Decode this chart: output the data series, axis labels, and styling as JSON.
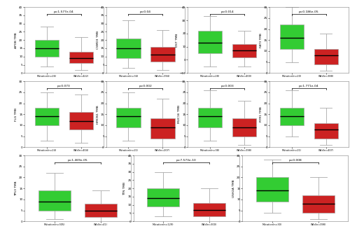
{
  "plots": [
    {
      "gene": "APOB",
      "ylabel": "APOB TMB",
      "pvalue": "p=1.577e-04",
      "mutation_label": "Mutation(n=26)",
      "wildtype_label": "Wild(n=422)",
      "mut": {
        "median": 15,
        "q1": 10,
        "q3": 20,
        "whislo": 4,
        "whishi": 28
      },
      "wt": {
        "median": 9,
        "q1": 6,
        "q3": 13,
        "whislo": 2,
        "whishi": 22
      },
      "ylim": [
        0,
        40
      ]
    },
    {
      "gene": "CSMD3",
      "ylabel": "CSMD3 TMB",
      "pvalue": "p=0.04",
      "mutation_label": "Mutation(n=34)",
      "wildtype_label": "Wild(n=394)",
      "mut": {
        "median": 15,
        "q1": 9,
        "q3": 21,
        "whislo": 3,
        "whishi": 32
      },
      "wt": {
        "median": 11,
        "q1": 7,
        "q3": 16,
        "whislo": 2,
        "whishi": 26
      },
      "ylim": [
        0,
        40
      ]
    },
    {
      "gene": "DST",
      "ylabel": "DST TMB",
      "pvalue": "p=0.014",
      "mutation_label": "Mutation(n=28)",
      "wildtype_label": "Wild(n=400)",
      "mut": {
        "median": 13,
        "q1": 5,
        "q3": 22,
        "whislo": -5,
        "whishi": 33
      },
      "wt": {
        "median": 7,
        "q1": 2,
        "q3": 12,
        "whislo": -5,
        "whishi": 22
      },
      "ylim": [
        -10,
        40
      ]
    },
    {
      "gene": "FAT3",
      "ylabel": "FAT3 TMB",
      "pvalue": "p=0.186e-05",
      "mutation_label": "Mutation(n=20)",
      "wildtype_label": "Wild(n=388)",
      "mut": {
        "median": 16,
        "q1": 11,
        "q3": 22,
        "whislo": 5,
        "whishi": 30
      },
      "wt": {
        "median": 8,
        "q1": 4,
        "q3": 11,
        "whislo": 1,
        "whishi": 18
      },
      "ylim": [
        0,
        30
      ]
    },
    {
      "gene": "FLG",
      "ylabel": "FLG TMB",
      "pvalue": "p=0.073",
      "mutation_label": "Mutation(n=24)",
      "wildtype_label": "Wild(n=404)",
      "mut": {
        "median": 14,
        "q1": 10,
        "q3": 18,
        "whislo": 3,
        "whishi": 25
      },
      "wt": {
        "median": 12,
        "q1": 8,
        "q3": 16,
        "whislo": 2,
        "whishi": 24
      },
      "ylim": [
        0,
        30
      ]
    },
    {
      "gene": "HMCN1",
      "ylabel": "HMCN1 TMB",
      "pvalue": "p=0.002",
      "mutation_label": "Mutation(n=21)",
      "wildtype_label": "Wild(n=207)",
      "mut": {
        "median": 14,
        "q1": 9,
        "q3": 18,
        "whislo": 3,
        "whishi": 25
      },
      "wt": {
        "median": 9,
        "q1": 4,
        "q3": 13,
        "whislo": 0,
        "whishi": 22
      },
      "ylim": [
        0,
        30
      ]
    },
    {
      "gene": "MUC16",
      "ylabel": "MUC16 TMB",
      "pvalue": "p=0.003",
      "mutation_label": "Mutation(n=38)",
      "wildtype_label": "Wild(n=398)",
      "mut": {
        "median": 14,
        "q1": 9,
        "q3": 18,
        "whislo": 3,
        "whishi": 26
      },
      "wt": {
        "median": 9,
        "q1": 5,
        "q3": 13,
        "whislo": 1,
        "whishi": 21
      },
      "ylim": [
        0,
        30
      ]
    },
    {
      "gene": "RYR1",
      "ylabel": "RYR1 TMB",
      "pvalue": "p=1.771e-04",
      "mutation_label": "Mutation(n=21)",
      "wildtype_label": "Wild(n=407)",
      "mut": {
        "median": 14,
        "q1": 10,
        "q3": 18,
        "whislo": 5,
        "whishi": 26
      },
      "wt": {
        "median": 8,
        "q1": 4,
        "q3": 11,
        "whislo": 1,
        "whishi": 18
      },
      "ylim": [
        0,
        30
      ]
    },
    {
      "gene": "TP53",
      "ylabel": "TP53 TMB",
      "pvalue": "p=1.469e-05",
      "mutation_label": "Mutation(n=305)",
      "wildtype_label": "Wild(n=41)",
      "mut": {
        "median": 9,
        "q1": 5,
        "q3": 14,
        "whislo": 1,
        "whishi": 22
      },
      "wt": {
        "median": 5,
        "q1": 2,
        "q3": 8,
        "whislo": 0,
        "whishi": 14
      },
      "ylim": [
        0,
        30
      ]
    },
    {
      "gene": "TTN",
      "ylabel": "TTN TMB",
      "pvalue": "p=7.573e-10",
      "mutation_label": "Mutation(n=129)",
      "wildtype_label": "Wild(n=300)",
      "mut": {
        "median": 14,
        "q1": 9,
        "q3": 20,
        "whislo": 3,
        "whishi": 30
      },
      "wt": {
        "median": 7,
        "q1": 3,
        "q3": 11,
        "whislo": 0,
        "whishi": 20
      },
      "ylim": [
        0,
        40
      ]
    },
    {
      "gene": "USH2A",
      "ylabel": "USH2A TMB",
      "pvalue": "p=0.008",
      "mutation_label": "Mutation(n=30)",
      "wildtype_label": "Wild(n=398)",
      "mut": {
        "median": 14,
        "q1": 9,
        "q3": 20,
        "whislo": 4,
        "whishi": 28
      },
      "wt": {
        "median": 8,
        "q1": 4,
        "q3": 12,
        "whislo": 1,
        "whishi": 20
      },
      "ylim": [
        0,
        30
      ]
    }
  ],
  "green_color": "#33CC33",
  "red_color": "#CC2222",
  "background": "#FFFFFF",
  "row_counts": [
    4,
    4,
    3
  ],
  "figsize": [
    5.0,
    3.4
  ],
  "dpi": 100
}
